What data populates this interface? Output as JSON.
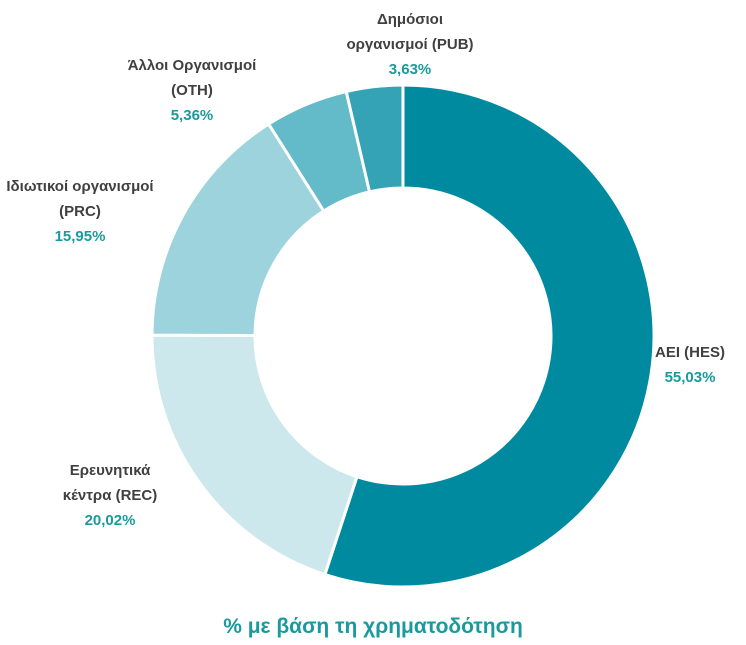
{
  "chart_data": {
    "type": "donut",
    "title": "% με βάση τη χρηματοδότηση",
    "categories": [
      "ΑΕΙ (HES)",
      "Ερευνητικά κέντρα (REC)",
      "Ιδιωτικοί οργανισμοί (PRC)",
      "Άλλοι Οργανισμοί (OTH)",
      "Δημόσιοι οργανισμοί (PUB)"
    ],
    "values": [
      55.03,
      20.02,
      15.95,
      5.36,
      3.63
    ],
    "value_labels": [
      "55,03%",
      "20,02%",
      "15,95%",
      "5,36%",
      "3,63%"
    ],
    "colors": [
      "#008a9f",
      "#cde8ed",
      "#9dd3dc",
      "#63bac8",
      "#34a3b5"
    ]
  }
}
